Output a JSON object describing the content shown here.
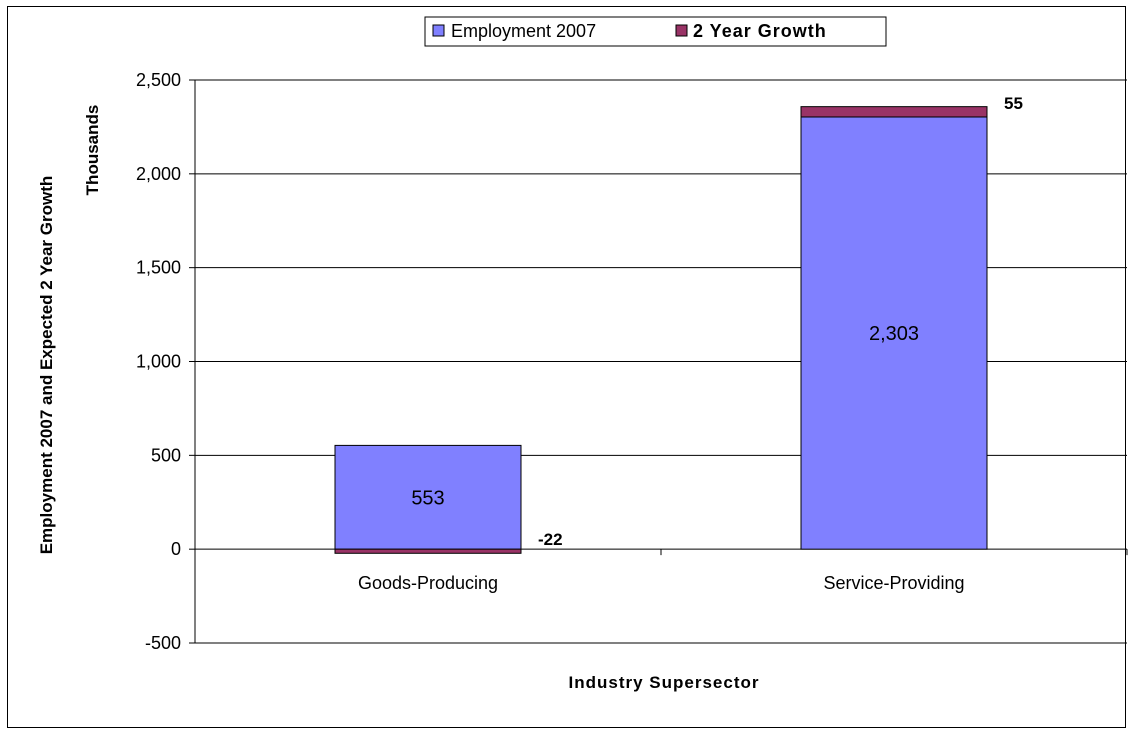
{
  "chart_data": {
    "type": "bar",
    "stacked": true,
    "categories": [
      "Goods-Producing",
      "Service-Providing"
    ],
    "series": [
      {
        "name": "Employment 2007",
        "values": [
          553,
          2303
        ],
        "color": "#8080ff",
        "labels": [
          "553",
          "2,303"
        ]
      },
      {
        "name": "2 Year Growth",
        "values": [
          -22,
          55
        ],
        "color": "#993366",
        "labels": [
          "-22",
          "55"
        ]
      }
    ],
    "xlabel": "Industry Supersector",
    "ylabel_lines": [
      "Employment 2007 and Expected 2 Year Growth",
      "Thousands"
    ],
    "ylim": [
      -500,
      2500
    ],
    "yticks": [
      -500,
      0,
      500,
      1000,
      1500,
      2000,
      2500
    ],
    "ytick_labels": [
      "-500",
      "0",
      "500",
      "1,000",
      "1,500",
      "2,000",
      "2,500"
    ],
    "grid": true,
    "legend": "top-center"
  }
}
